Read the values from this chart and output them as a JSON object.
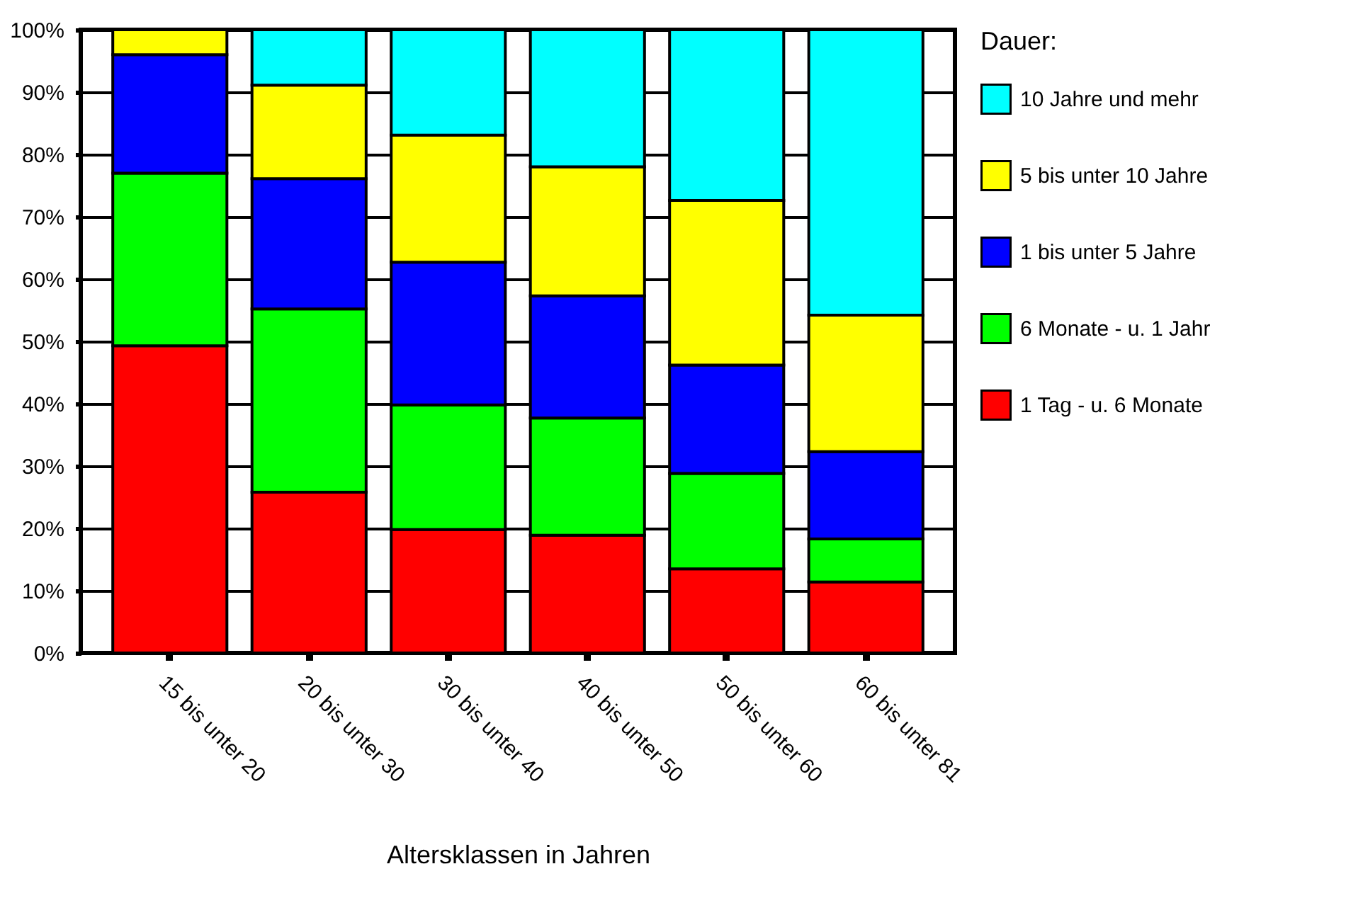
{
  "chart_data": {
    "type": "bar",
    "stacked": true,
    "xlabel": "Altersklassen in Jahren",
    "legend_title": "Dauer:",
    "categories": [
      "15 bis unter 20",
      "20 bis unter 30",
      "30 bis unter 40",
      "40 bis unter 50",
      "50 bis unter 60",
      "60 bis unter 81"
    ],
    "series": [
      {
        "name": "1 Tag - u. 6 Monate",
        "color": "#ff0000",
        "values": [
          49.3,
          25.8,
          19.8,
          18.9,
          13.5,
          11.4
        ]
      },
      {
        "name": "6 Monate - u. 1 Jahr",
        "color": "#00ff00",
        "values": [
          27.7,
          29.4,
          20,
          18.8,
          15.3,
          6.9
        ]
      },
      {
        "name": "1 bis unter 5 Jahre",
        "color": "#0000ff",
        "values": [
          19,
          20.9,
          22.9,
          19.6,
          17.4,
          14
        ]
      },
      {
        "name": "5 bis unter 10 Jahre",
        "color": "#ffff00",
        "values": [
          4,
          15,
          20.4,
          20.7,
          26.4,
          21.9
        ]
      },
      {
        "name": "10 Jahre und mehr",
        "color": "#00ffff",
        "values": [
          null,
          8.9,
          16.9,
          22,
          27.4,
          45.8
        ]
      }
    ],
    "ylim": [
      0,
      100
    ],
    "yticks": [
      {
        "value": 0,
        "label": "0%"
      },
      {
        "value": 10,
        "label": "10%"
      },
      {
        "value": 20,
        "label": "20%"
      },
      {
        "value": 30,
        "label": "30%"
      },
      {
        "value": 40,
        "label": "40%"
      },
      {
        "value": 50,
        "label": "50%"
      },
      {
        "value": 60,
        "label": "60%"
      },
      {
        "value": 70,
        "label": "70%"
      },
      {
        "value": 80,
        "label": "80%"
      },
      {
        "value": 90,
        "label": "90%"
      },
      {
        "value": 100,
        "label": "100%"
      }
    ],
    "grid": "y",
    "legend": "right"
  }
}
